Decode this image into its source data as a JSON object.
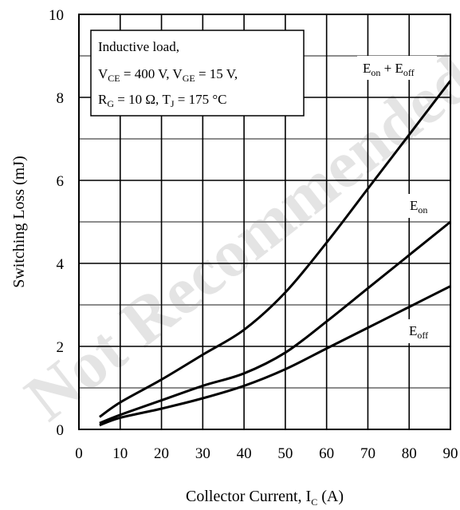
{
  "chart_data": {
    "type": "line",
    "title": "",
    "xlabel": "Collector Current, I_C (A)",
    "ylabel": "Switching Loss (mJ)",
    "xlim": [
      0,
      90
    ],
    "ylim": [
      0,
      10
    ],
    "x_ticks": [
      0,
      10,
      20,
      30,
      40,
      50,
      60,
      70,
      80,
      90
    ],
    "y_ticks": [
      0,
      2,
      4,
      6,
      8,
      10
    ],
    "grid": true,
    "minor_grid_y": [
      1,
      3,
      5,
      7,
      9
    ],
    "series": [
      {
        "name": "E_on + E_off",
        "x": [
          5,
          10,
          20,
          30,
          40,
          50,
          60,
          70,
          80,
          90
        ],
        "y": [
          0.3,
          0.65,
          1.2,
          1.8,
          2.4,
          3.3,
          4.5,
          5.8,
          7.1,
          8.4
        ]
      },
      {
        "name": "E_on",
        "x": [
          5,
          10,
          20,
          30,
          40,
          50,
          60,
          70,
          80,
          90
        ],
        "y": [
          0.15,
          0.35,
          0.7,
          1.05,
          1.35,
          1.85,
          2.6,
          3.4,
          4.2,
          5.0
        ]
      },
      {
        "name": "E_off",
        "x": [
          5,
          10,
          20,
          30,
          40,
          50,
          60,
          70,
          80,
          90
        ],
        "y": [
          0.1,
          0.28,
          0.5,
          0.75,
          1.05,
          1.45,
          1.95,
          2.45,
          2.95,
          3.45
        ]
      }
    ],
    "annotation_lines": [
      "Inductive load,",
      "V_CE = 400 V, V_GE = 15 V,",
      "R_G = 10 Ω, T_J = 175 °C"
    ],
    "watermark": "Not Recommended"
  }
}
